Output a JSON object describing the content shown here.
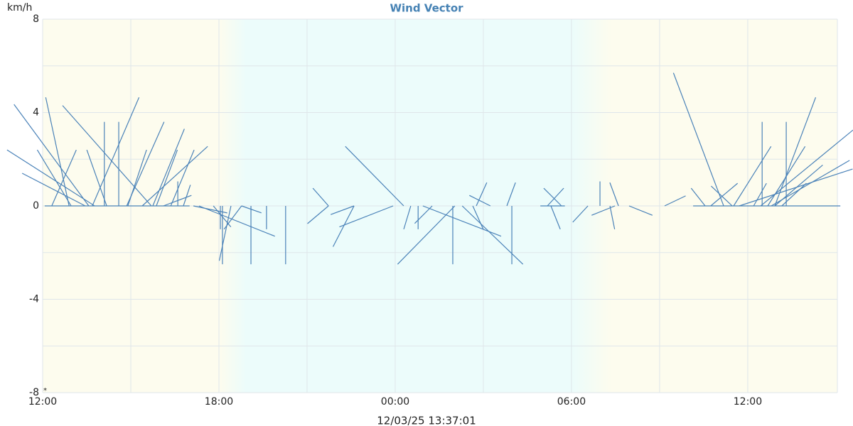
{
  "chart_data": {
    "type": "vector",
    "title": "Wind Vector",
    "y_label": "km/h",
    "footer": "12/03/25 13:37:01",
    "corner_mark": "*",
    "color": "#4a82b8",
    "xlim": [
      12,
      39.05
    ],
    "ylim": [
      -8,
      8
    ],
    "xticks": [
      {
        "value": 12,
        "label": "12:00"
      },
      {
        "value": 18,
        "label": "18:00"
      },
      {
        "value": 24,
        "label": "00:00"
      },
      {
        "value": 30,
        "label": "06:00"
      },
      {
        "value": 36,
        "label": "12:00"
      }
    ],
    "yticks": [
      -8,
      -4,
      0,
      4,
      8
    ],
    "grid": true,
    "x": [
      13.57,
      12.9,
      15.7,
      13.77,
      13.69,
      14.1,
      14.59,
      12.31,
      12.97,
      13.45,
      15.75,
      14.86,
      15.39,
      16.36,
      15.87,
      14.18,
      14.9,
      16.79,
      16.11,
      16.6,
      12.07,
      17.13,
      17.32,
      18.05,
      18.12,
      18.41,
      17.81,
      18.77,
      19.09,
      18.77,
      19.62,
      20.27,
      21.73,
      21.73,
      22.6,
      22.6,
      23.93,
      24.29,
      24.53,
      24.78,
      25.26,
      26.03,
      25.96,
      24.94,
      26.28,
      27.24,
      26.76,
      26.64,
      27.8,
      27.97,
      29.18,
      29.66,
      29.3,
      28.94,
      30.56,
      30.97,
      31.6,
      31.48,
      31.31,
      31.96,
      33.17,
      35.18,
      34.55,
      35.47,
      34.74,
      35.52,
      36.49,
      37.31,
      36.92,
      36.68,
      36.2,
      36.44,
      36.8,
      36.92,
      37.16,
      35.71,
      34.14
    ],
    "u": [
      -3.2,
      -1.0,
      -3.8,
      -3.75,
      2.0,
      0,
      0,
      1.05,
      -1.45,
      -2.7,
      1.35,
      1.6,
      2.8,
      1.0,
      0.9,
      -0.85,
      0.8,
      0.3,
      1.2,
      0,
      6.2,
      1.45,
      3.25,
      0,
      0,
      -0.5,
      0.75,
      -0.75,
      0,
      0.85,
      0,
      0,
      -0.67,
      -0.9,
      -0.9,
      -1.0,
      -2.3,
      -2.5,
      -0.3,
      0,
      -0.75,
      -2.45,
      0,
      3.35,
      2.6,
      -0.9,
      0.45,
      0.45,
      0.37,
      0,
      0.7,
      -0.76,
      0.4,
      1.05,
      -0.65,
      0,
      -0.37,
      -1.0,
      0.2,
      1.0,
      0.9,
      -2.15,
      -0.6,
      -0.9,
      1.15,
      1.6,
      0,
      0,
      1.75,
      1.6,
      0.55,
      3.95,
      3.35,
      2.05,
      1.05,
      4.85,
      6.3
    ],
    "v": [
      4.35,
      4.65,
      4.3,
      2.4,
      4.65,
      3.6,
      3.6,
      2.4,
      2.4,
      1.4,
      3.3,
      3.6,
      2.55,
      2.4,
      2.4,
      2.4,
      2.4,
      0.9,
      0.45,
      1.05,
      0,
      -0.3,
      -1.3,
      -1.0,
      -2.5,
      -2.35,
      -0.9,
      -1.0,
      -2.5,
      -0.3,
      -1.0,
      -2.5,
      0.76,
      -0.76,
      -1.75,
      -0.37,
      -0.9,
      2.55,
      -1.0,
      -1.0,
      -0.75,
      -2.5,
      -2.5,
      -1.3,
      -2.5,
      0.45,
      1.0,
      -1.0,
      1.0,
      -2.5,
      0.76,
      0.76,
      -1.0,
      0,
      -0.7,
      1.05,
      1.0,
      -0.4,
      -1.0,
      -0.4,
      0.43,
      5.7,
      0.76,
      0.85,
      0.97,
      2.55,
      3.6,
      3.6,
      4.65,
      2.55,
      0.97,
      3.25,
      1.95,
      1.75,
      0.97,
      1.58,
      0
    ]
  }
}
